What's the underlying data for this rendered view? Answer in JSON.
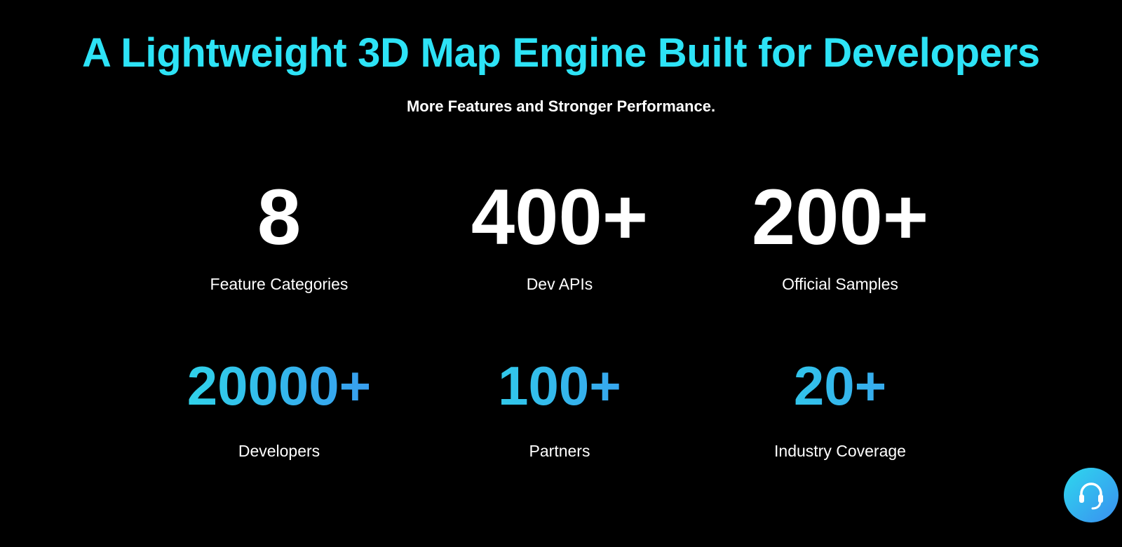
{
  "header": {
    "title": "A Lightweight 3D Map Engine Built for Developers",
    "subtitle": "More Features and Stronger Performance."
  },
  "stats": {
    "rows": [
      [
        {
          "value": "8",
          "label": "Feature Categories"
        },
        {
          "value": "400+",
          "label": "Dev APIs"
        },
        {
          "value": "200+",
          "label": "Official Samples"
        }
      ],
      [
        {
          "value": "20000+",
          "label": "Developers"
        },
        {
          "value": "100+",
          "label": "Partners"
        },
        {
          "value": "20+",
          "label": "Industry Coverage"
        }
      ]
    ]
  }
}
